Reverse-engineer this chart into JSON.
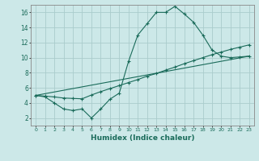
{
  "xlabel": "Humidex (Indice chaleur)",
  "ylabel": "",
  "background_color": "#cce8e8",
  "grid_color": "#aacccc",
  "line_color": "#1a6b5a",
  "xlim": [
    -0.5,
    23.5
  ],
  "ylim": [
    1.0,
    17.0
  ],
  "yticks": [
    2,
    4,
    6,
    8,
    10,
    12,
    14,
    16
  ],
  "xticks": [
    0,
    1,
    2,
    3,
    4,
    5,
    6,
    7,
    8,
    9,
    10,
    11,
    12,
    13,
    14,
    15,
    16,
    17,
    18,
    19,
    20,
    21,
    22,
    23
  ],
  "series1_x": [
    0,
    1,
    2,
    3,
    4,
    5,
    6,
    7,
    8,
    9,
    10,
    11,
    12,
    13,
    14,
    15,
    16,
    17,
    18,
    19,
    20,
    21,
    22,
    23
  ],
  "series1_y": [
    5.0,
    4.8,
    4.0,
    3.2,
    3.0,
    3.2,
    2.0,
    3.2,
    4.5,
    5.3,
    9.5,
    13.0,
    14.5,
    16.0,
    16.0,
    16.8,
    15.8,
    14.7,
    13.0,
    11.0,
    10.2,
    10.0,
    10.1,
    10.2
  ],
  "series2_x": [
    0,
    1,
    2,
    3,
    4,
    5,
    6,
    7,
    8,
    9,
    10,
    11,
    12,
    13,
    14,
    15,
    16,
    17,
    18,
    19,
    20,
    21,
    22,
    23
  ],
  "series2_y": [
    5.0,
    4.9,
    4.8,
    4.65,
    4.6,
    4.55,
    5.05,
    5.5,
    5.9,
    6.3,
    6.7,
    7.1,
    7.55,
    7.9,
    8.35,
    8.75,
    9.2,
    9.6,
    10.0,
    10.4,
    10.75,
    11.1,
    11.4,
    11.7
  ],
  "series3_x": [
    0,
    23
  ],
  "series3_y": [
    5.0,
    10.2
  ]
}
